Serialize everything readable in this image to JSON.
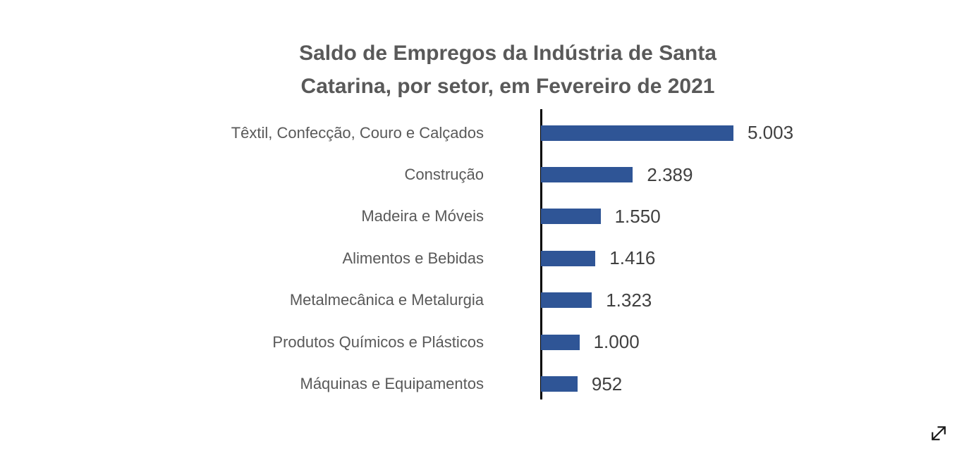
{
  "title": {
    "full": "Saldo de Empregos da Indústria de Santa Catarina, por setor, em Fevereiro de 2021",
    "line1": "Saldo de Empregos da Indústria de Santa",
    "line2": "Catarina, por setor, em Fevereiro de 2021"
  },
  "chart_data": {
    "type": "bar",
    "orientation": "horizontal",
    "title": "Saldo de Empregos da Indústria de Santa Catarina, por setor, em Fevereiro de 2021",
    "categories": [
      "Têxtil, Confecção, Couro e Calçados",
      "Construção",
      "Madeira e Móveis",
      "Alimentos e Bebidas",
      "Metalmecânica e Metalurgia",
      "Produtos Químicos e Plásticos",
      "Máquinas e Equipamentos"
    ],
    "values": [
      5003,
      2389,
      1550,
      1416,
      1323,
      1000,
      952
    ],
    "value_labels": [
      "5.003",
      "2.389",
      "1.550",
      "1.416",
      "1.323",
      "1.000",
      "952"
    ],
    "xlim": [
      0,
      5003
    ],
    "grid": false,
    "legend": false,
    "data_labels_position": "outside-end",
    "bar_color": "#2F5596",
    "axis_color": "#000000",
    "category_label_color": "#595959",
    "value_label_color": "#404040",
    "title_color": "#595959",
    "background_color": "#FFFFFF"
  },
  "icons": {
    "expand_icon": {
      "name": "resize-expand-diagonal",
      "glyph": "⤢",
      "color": "#1a1a1a"
    }
  }
}
